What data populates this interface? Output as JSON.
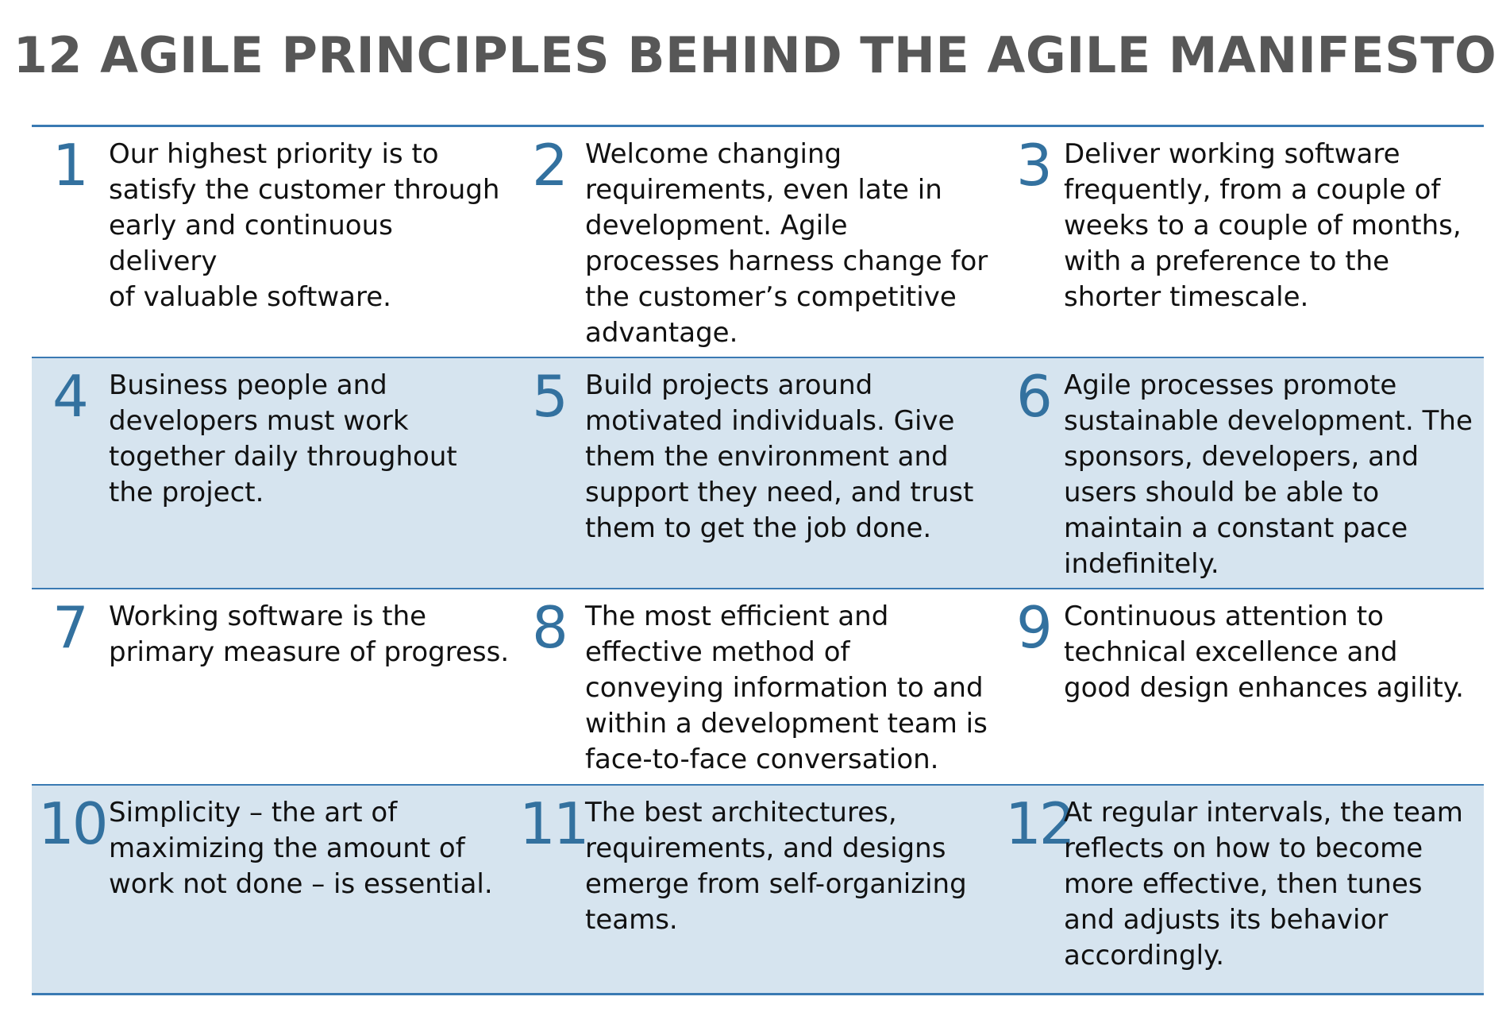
{
  "title": "12 AGILE PRINCIPLES BEHIND THE AGILE MANIFESTO",
  "colors": {
    "title": "#575757",
    "accent": "#33719f",
    "rule": "#3a7ab3",
    "shade": "#d6e4ef"
  },
  "principles": [
    {
      "number": "1",
      "text": "Our highest priority is to\nsatisfy the customer through\nearly and continuous delivery\nof valuable software."
    },
    {
      "number": "2",
      "text": "Welcome changing\nrequirements, even late in\ndevelopment.  Agile\nprocesses harness change for\nthe customer’s competitive\nadvantage."
    },
    {
      "number": "3",
      "text": "Deliver working software\nfrequently, from a couple of\nweeks to a couple of months,\nwith a preference to the\nshorter timescale."
    },
    {
      "number": "4",
      "text": "Business people and\ndevelopers must work\ntogether daily throughout\nthe project."
    },
    {
      "number": "5",
      "text": "Build projects around\nmotivated individuals. Give\nthem the environment and\nsupport they need, and trust\nthem to get the job done."
    },
    {
      "number": "6",
      "text": "Agile processes promote\nsustainable development. The\nsponsors, developers, and\nusers should be able to\nmaintain a constant pace\nindefinitely."
    },
    {
      "number": "7",
      "text": "Working software is the\nprimary measure of progress."
    },
    {
      "number": "8",
      "text": "The most efficient and\neffective method of\nconveying information to and\nwithin a development team is\nface-to-face conversation."
    },
    {
      "number": "9",
      "text": "Continuous attention to\ntechnical excellence and\ngood design enhances agility."
    },
    {
      "number": "10",
      "text": "Simplicity – the art of\nmaximizing the amount of\nwork not done – is essential."
    },
    {
      "number": "11",
      "text": "The best architectures,\nrequirements, and designs\nemerge from self-organizing\nteams."
    },
    {
      "number": "12",
      "text": "At regular intervals, the team\nreflects on how to become\nmore effective, then tunes\nand adjusts its behavior\naccordingly."
    }
  ]
}
